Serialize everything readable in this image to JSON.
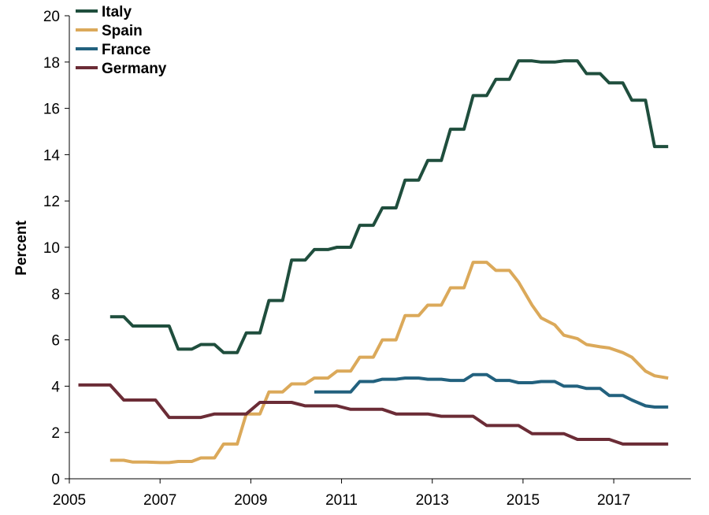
{
  "chart_data": {
    "type": "line",
    "title": "",
    "xlabel": "",
    "ylabel": "Percent",
    "xlim": [
      2005,
      2018.7
    ],
    "ylim": [
      0,
      20
    ],
    "x_ticks": [
      "2005",
      "2007",
      "2009",
      "2011",
      "2013",
      "2015",
      "2017"
    ],
    "y_ticks": [
      "0",
      "2",
      "4",
      "6",
      "8",
      "10",
      "12",
      "14",
      "16",
      "18",
      "20"
    ],
    "grid": false,
    "legend_position": "top-left",
    "series": [
      {
        "name": "Italy",
        "color": "#1f4e3d",
        "x": [
          2005.9,
          2006.2,
          2006.4,
          2006.7,
          2007.0,
          2007.2,
          2007.4,
          2007.7,
          2007.9,
          2008.2,
          2008.4,
          2008.7,
          2008.9,
          2009.2,
          2009.4,
          2009.7,
          2009.9,
          2010.2,
          2010.4,
          2010.7,
          2010.9,
          2011.2,
          2011.4,
          2011.7,
          2011.9,
          2012.2,
          2012.4,
          2012.7,
          2012.9,
          2013.2,
          2013.4,
          2013.7,
          2013.9,
          2014.2,
          2014.4,
          2014.7,
          2014.9,
          2015.2,
          2015.4,
          2015.7,
          2015.9,
          2016.2,
          2016.4,
          2016.7,
          2016.9,
          2017.2,
          2017.4,
          2017.7,
          2017.9,
          2018.2
        ],
        "y": [
          7.0,
          7.0,
          6.6,
          6.6,
          6.6,
          6.6,
          5.6,
          5.6,
          5.8,
          5.8,
          5.45,
          5.45,
          6.3,
          6.3,
          7.7,
          7.7,
          9.45,
          9.45,
          9.9,
          9.9,
          10.0,
          10.0,
          10.95,
          10.95,
          11.7,
          11.7,
          12.9,
          12.9,
          13.75,
          13.75,
          15.1,
          15.1,
          16.55,
          16.55,
          17.25,
          17.25,
          18.05,
          18.05,
          18.0,
          18.0,
          18.05,
          18.05,
          17.5,
          17.5,
          17.1,
          17.1,
          16.35,
          16.35,
          14.35,
          14.35
        ]
      },
      {
        "name": "Spain",
        "color": "#dba95a",
        "x": [
          2005.9,
          2006.2,
          2006.4,
          2006.7,
          2007.0,
          2007.2,
          2007.4,
          2007.7,
          2007.9,
          2008.2,
          2008.4,
          2008.7,
          2008.9,
          2009.2,
          2009.4,
          2009.7,
          2009.9,
          2010.2,
          2010.4,
          2010.7,
          2010.9,
          2011.2,
          2011.4,
          2011.7,
          2011.9,
          2012.2,
          2012.4,
          2012.7,
          2012.9,
          2013.2,
          2013.4,
          2013.7,
          2013.9,
          2014.2,
          2014.4,
          2014.7,
          2014.9,
          2015.2,
          2015.4,
          2015.7,
          2015.9,
          2016.2,
          2016.4,
          2016.7,
          2016.9,
          2017.2,
          2017.4,
          2017.7,
          2017.9,
          2018.2
        ],
        "y": [
          0.8,
          0.8,
          0.72,
          0.72,
          0.7,
          0.7,
          0.75,
          0.75,
          0.9,
          0.9,
          1.5,
          1.5,
          2.8,
          2.8,
          3.75,
          3.75,
          4.1,
          4.1,
          4.35,
          4.35,
          4.65,
          4.65,
          5.25,
          5.25,
          6.0,
          6.0,
          7.05,
          7.05,
          7.5,
          7.5,
          8.25,
          8.25,
          9.35,
          9.35,
          9.0,
          9.0,
          8.5,
          7.5,
          6.95,
          6.65,
          6.2,
          6.05,
          5.8,
          5.7,
          5.65,
          5.45,
          5.25,
          4.65,
          4.45,
          4.35
        ]
      },
      {
        "name": "France",
        "color": "#22617e",
        "x": [
          2010.4,
          2010.7,
          2010.9,
          2011.2,
          2011.4,
          2011.7,
          2011.9,
          2012.2,
          2012.4,
          2012.7,
          2012.9,
          2013.2,
          2013.4,
          2013.7,
          2013.9,
          2014.2,
          2014.4,
          2014.7,
          2014.9,
          2015.2,
          2015.4,
          2015.7,
          2015.9,
          2016.2,
          2016.4,
          2016.7,
          2016.9,
          2017.2,
          2017.4,
          2017.7,
          2017.9,
          2018.2
        ],
        "y": [
          3.75,
          3.75,
          3.75,
          3.75,
          4.2,
          4.2,
          4.3,
          4.3,
          4.35,
          4.35,
          4.3,
          4.3,
          4.25,
          4.25,
          4.5,
          4.5,
          4.25,
          4.25,
          4.15,
          4.15,
          4.2,
          4.2,
          4.0,
          4.0,
          3.9,
          3.9,
          3.6,
          3.6,
          3.4,
          3.15,
          3.1,
          3.1
        ]
      },
      {
        "name": "Germany",
        "color": "#6b2c36",
        "x": [
          2005.2,
          2005.4,
          2005.7,
          2005.9,
          2006.2,
          2006.4,
          2006.7,
          2006.9,
          2007.2,
          2007.4,
          2007.7,
          2007.9,
          2008.2,
          2008.4,
          2008.7,
          2008.9,
          2009.2,
          2009.4,
          2009.7,
          2009.9,
          2010.2,
          2010.4,
          2010.7,
          2010.9,
          2011.2,
          2011.4,
          2011.7,
          2011.9,
          2012.2,
          2012.4,
          2012.7,
          2012.9,
          2013.2,
          2013.4,
          2013.7,
          2013.9,
          2014.2,
          2014.4,
          2014.7,
          2014.9,
          2015.2,
          2015.4,
          2015.7,
          2015.9,
          2016.2,
          2016.4,
          2016.7,
          2016.9,
          2017.2,
          2017.4,
          2017.7,
          2017.9,
          2018.2
        ],
        "y": [
          4.05,
          4.05,
          4.05,
          4.05,
          3.4,
          3.4,
          3.4,
          3.4,
          2.65,
          2.65,
          2.65,
          2.65,
          2.8,
          2.8,
          2.8,
          2.8,
          3.3,
          3.3,
          3.3,
          3.3,
          3.15,
          3.15,
          3.15,
          3.15,
          3.0,
          3.0,
          3.0,
          3.0,
          2.8,
          2.8,
          2.8,
          2.8,
          2.7,
          2.7,
          2.7,
          2.7,
          2.3,
          2.3,
          2.3,
          2.3,
          1.95,
          1.95,
          1.95,
          1.95,
          1.7,
          1.7,
          1.7,
          1.7,
          1.5,
          1.5,
          1.5,
          1.5,
          1.5
        ]
      }
    ]
  }
}
